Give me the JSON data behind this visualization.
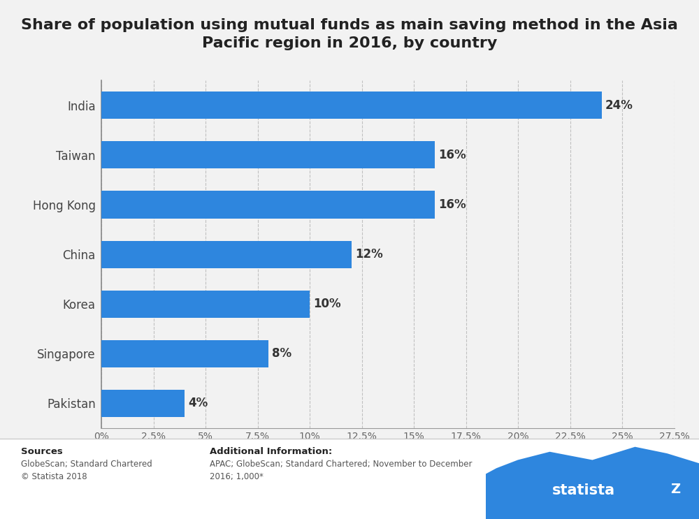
{
  "title": "Share of population using mutual funds as main saving method in the Asia\nPacific region in 2016, by country",
  "categories": [
    "India",
    "Taiwan",
    "Hong Kong",
    "China",
    "Korea",
    "Singapore",
    "Pakistan"
  ],
  "values": [
    24,
    16,
    16,
    12,
    10,
    8,
    4
  ],
  "bar_color": "#2e86de",
  "xlabel": "Share of population",
  "xlim": [
    0,
    27.5
  ],
  "xticks": [
    0,
    2.5,
    5,
    7.5,
    10,
    12.5,
    15,
    17.5,
    20,
    22.5,
    25,
    27.5
  ],
  "xtick_labels": [
    "0%",
    "2.5%",
    "5%",
    "7.5%",
    "10%",
    "12.5%",
    "15%",
    "17.5%",
    "20%",
    "22.5%",
    "25%",
    "27.5%"
  ],
  "background_color": "#f2f2f2",
  "plot_background": "#f2f2f2",
  "title_fontsize": 16,
  "label_fontsize": 12,
  "value_fontsize": 12,
  "sources_bold": "Sources",
  "sources_body": "GlobeScan; Standard Chartered\n© Statista 2018",
  "additional_bold": "Additional Information:",
  "additional_body": "APAC; GlobeScan; Standard Chartered; November to December\n2016; 1,000*",
  "footer_bg": "#ffffff",
  "statista_bg": "#1a2e50",
  "wave_color": "#2e86de"
}
